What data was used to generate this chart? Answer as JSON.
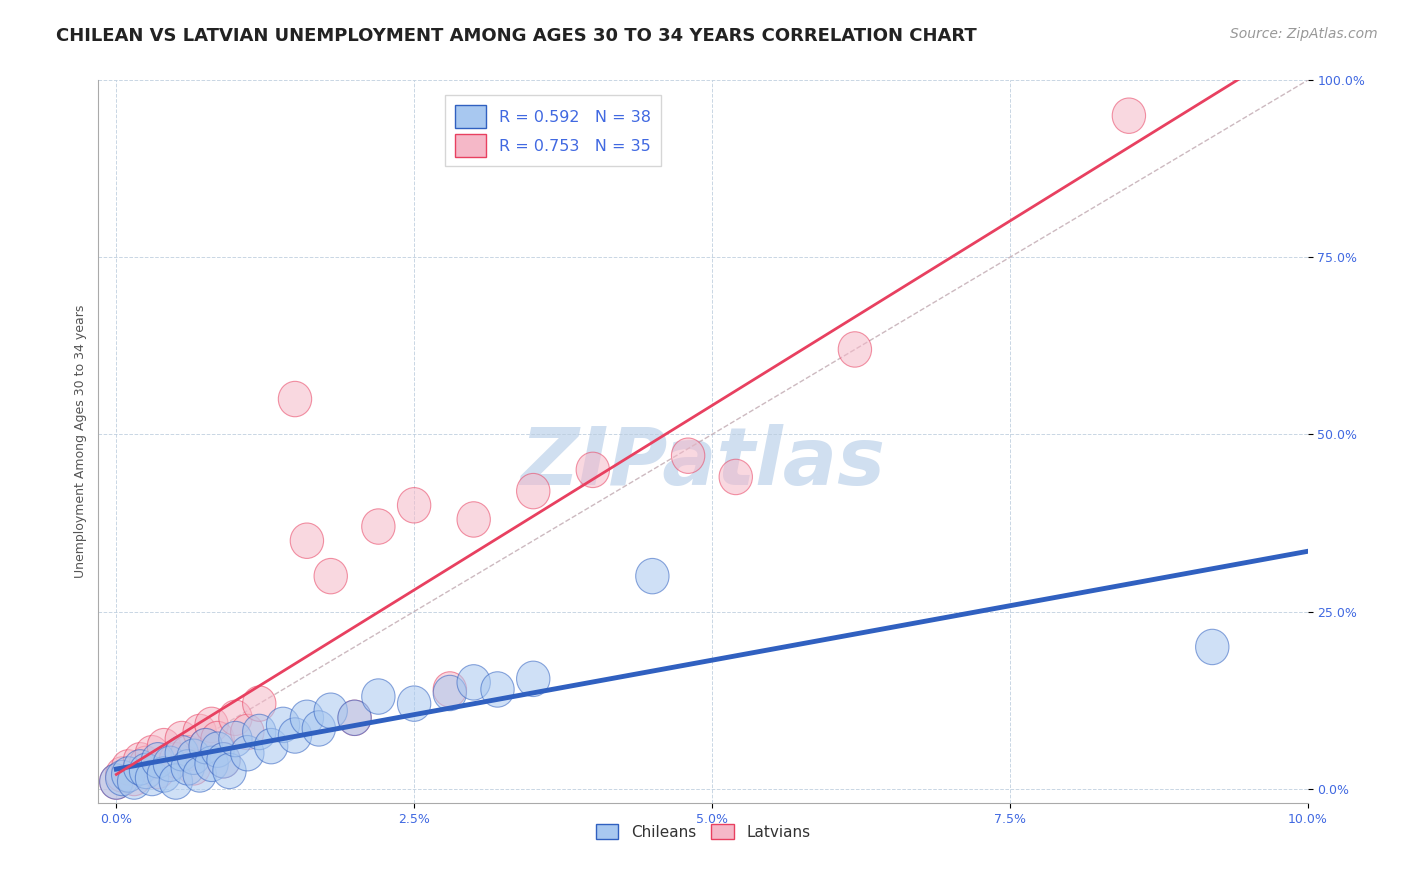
{
  "title": "CHILEAN VS LATVIAN UNEMPLOYMENT AMONG AGES 30 TO 34 YEARS CORRELATION CHART",
  "source": "Source: ZipAtlas.com",
  "xlabel_ticks": [
    "0.0%",
    "2.5%",
    "5.0%",
    "7.5%",
    "10.0%"
  ],
  "xlabel_vals": [
    0.0,
    2.5,
    5.0,
    7.5,
    10.0
  ],
  "ylabel_ticks": [
    "0.0%",
    "25.0%",
    "50.0%",
    "75.0%",
    "100.0%"
  ],
  "ylabel_vals": [
    0.0,
    25.0,
    50.0,
    75.0,
    100.0
  ],
  "xlim": [
    -0.15,
    10.0
  ],
  "ylim": [
    -2.0,
    100.0
  ],
  "legend_blue_label": "R = 0.592   N = 38",
  "legend_pink_label": "R = 0.753   N = 35",
  "legend_blue_label2": "Chileans",
  "legend_pink_label2": "Latvians",
  "blue_color": "#A8C8F0",
  "pink_color": "#F5B8C8",
  "blue_line_color": "#3060C0",
  "pink_line_color": "#E84060",
  "watermark": "ZIPatlas",
  "watermark_color": "#D0DFF0",
  "chilean_x": [
    0.0,
    0.05,
    0.1,
    0.15,
    0.2,
    0.25,
    0.3,
    0.35,
    0.4,
    0.45,
    0.5,
    0.55,
    0.6,
    0.65,
    0.7,
    0.75,
    0.8,
    0.85,
    0.9,
    0.95,
    1.0,
    1.1,
    1.2,
    1.3,
    1.4,
    1.5,
    1.6,
    1.7,
    1.8,
    2.0,
    2.2,
    2.5,
    2.8,
    3.0,
    3.2,
    3.5,
    4.5,
    9.2
  ],
  "chilean_y": [
    1.0,
    1.5,
    2.0,
    1.0,
    3.0,
    2.5,
    1.5,
    4.0,
    2.0,
    3.5,
    1.0,
    5.0,
    3.0,
    4.5,
    2.0,
    6.0,
    3.5,
    5.5,
    4.0,
    2.5,
    7.0,
    5.0,
    8.0,
    6.0,
    9.0,
    7.5,
    10.0,
    8.5,
    11.0,
    10.0,
    13.0,
    12.0,
    13.5,
    15.0,
    14.0,
    15.5,
    30.0,
    20.0
  ],
  "latvian_x": [
    0.0,
    0.05,
    0.1,
    0.15,
    0.2,
    0.25,
    0.3,
    0.35,
    0.4,
    0.5,
    0.55,
    0.6,
    0.65,
    0.7,
    0.75,
    0.8,
    0.85,
    0.9,
    1.0,
    1.1,
    1.2,
    1.5,
    1.6,
    1.8,
    2.0,
    2.2,
    2.5,
    2.8,
    3.0,
    3.5,
    4.0,
    4.8,
    5.2,
    6.2,
    8.5
  ],
  "latvian_y": [
    1.0,
    2.0,
    3.0,
    1.5,
    4.0,
    3.5,
    5.0,
    2.5,
    6.0,
    4.0,
    7.0,
    5.0,
    3.0,
    8.0,
    6.0,
    9.0,
    7.0,
    4.0,
    10.0,
    8.0,
    12.0,
    55.0,
    35.0,
    30.0,
    10.0,
    37.0,
    40.0,
    14.0,
    38.0,
    42.0,
    45.0,
    47.0,
    44.0,
    62.0,
    95.0
  ],
  "title_fontsize": 13,
  "axis_label_fontsize": 9,
  "tick_fontsize": 9,
  "source_fontsize": 10
}
